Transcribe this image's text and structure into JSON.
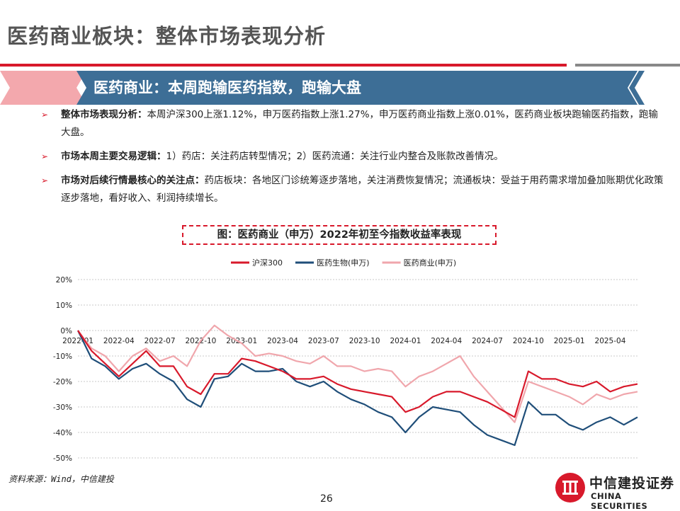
{
  "slide": {
    "title": "医药商业板块：整体市场表现分析",
    "banner": "医药商业：本周跑输医药指数，跑输大盘",
    "bullets": [
      {
        "lead": "整体市场表现分析：",
        "text": "本周沪深300上涨1.12%，申万医药指数上涨1.27%，申万医药商业指数上涨0.01%，医药商业板块跑输医药指数，跑输大盘。"
      },
      {
        "lead": "市场本周主要交易逻辑：",
        "text": "1）药店：关注药店转型情况；2）医药流通：关注行业内整合及账款改善情况。"
      },
      {
        "lead": "市场对后续行情最核心的关注点：",
        "text": "药店板块：各地区门诊统筹逐步落地，关注消费恢复情况；流通板块：受益于用药需求增加叠加账期优化政策逐步落地，看好收入、利润持续增长。"
      }
    ],
    "chart_caption": "图：医药商业（申万）2022年初至今指数收益率表现",
    "source": "资料来源：Wind，中信建投",
    "page_number": "26",
    "logo_cn": "中信建投证券",
    "logo_en": "CHINA SECURITIES"
  },
  "colors": {
    "brand_red": "#d8192b",
    "banner_blue": "#3d6e96",
    "banner_pink": "#f3a8ad",
    "grey": "#888888"
  },
  "icons": {
    "bullet": "triangle-right-icon",
    "logo": "citic-logo-icon"
  },
  "chart_data": {
    "type": "line",
    "title": "",
    "xlabel": "",
    "ylabel": "",
    "x": [
      "2022-01",
      "2022-02",
      "2022-03",
      "2022-04",
      "2022-05",
      "2022-06",
      "2022-07",
      "2022-08",
      "2022-09",
      "2022-10",
      "2022-11",
      "2022-12",
      "2023-01",
      "2023-02",
      "2023-03",
      "2023-04",
      "2023-05",
      "2023-06",
      "2023-07",
      "2023-08",
      "2023-09",
      "2023-10",
      "2023-11",
      "2023-12",
      "2024-01",
      "2024-02",
      "2024-03",
      "2024-04",
      "2024-05",
      "2024-06",
      "2024-07",
      "2024-08",
      "2024-09",
      "2024-10",
      "2024-11",
      "2024-12",
      "2025-01",
      "2025-02",
      "2025-03",
      "2025-04",
      "2025-05",
      "2025-06"
    ],
    "x_ticks": [
      "2022-01",
      "2022-04",
      "2022-07",
      "2022-10",
      "2023-01",
      "2023-04",
      "2023-07",
      "2023-10",
      "2024-01",
      "2024-04",
      "2024-07",
      "2024-10",
      "2025-01",
      "2025-04"
    ],
    "y_ticks": [
      "20%",
      "10%",
      "0%",
      "-10%",
      "-20%",
      "-30%",
      "-40%",
      "-50%"
    ],
    "ylim": [
      -50,
      20
    ],
    "grid": true,
    "legend_position": "top",
    "series": [
      {
        "name": "沪深300",
        "color": "#d8192b",
        "values": [
          0,
          -8,
          -13,
          -18,
          -13,
          -8,
          -14,
          -14,
          -22,
          -25,
          -17,
          -17,
          -11,
          -12,
          -14,
          -16,
          -19,
          -19,
          -18,
          -21,
          -23,
          -24,
          -25,
          -26,
          -32,
          -30,
          -26,
          -24,
          -24,
          -26,
          -28,
          -31,
          -34,
          -16,
          -19,
          -19,
          -21,
          -22,
          -20,
          -24,
          -22,
          -21
        ]
      },
      {
        "name": "医药生物(申万)",
        "color": "#1f4e79",
        "values": [
          0,
          -11,
          -14,
          -19,
          -15,
          -13,
          -17,
          -20,
          -27,
          -30,
          -19,
          -18,
          -13,
          -16,
          -16,
          -15,
          -20,
          -22,
          -20,
          -24,
          -27,
          -29,
          -32,
          -34,
          -40,
          -34,
          -30,
          -31,
          -32,
          -37,
          -41,
          -43,
          -45,
          -28,
          -33,
          -33,
          -37,
          -39,
          -36,
          -34,
          -37,
          -34
        ]
      },
      {
        "name": "医药商业(申万)",
        "color": "#f0a6ac",
        "values": [
          0,
          -7,
          -10,
          -16,
          -10,
          -7,
          -12,
          -10,
          -14,
          -4,
          2,
          -2,
          -5,
          -10,
          -9,
          -10,
          -12,
          -13,
          -10,
          -14,
          -14,
          -16,
          -15,
          -16,
          -22,
          -18,
          -16,
          -13,
          -10,
          -18,
          -24,
          -30,
          -36,
          -20,
          -22,
          -24,
          -26,
          -29,
          -25,
          -27,
          -25,
          -24
        ]
      }
    ]
  }
}
